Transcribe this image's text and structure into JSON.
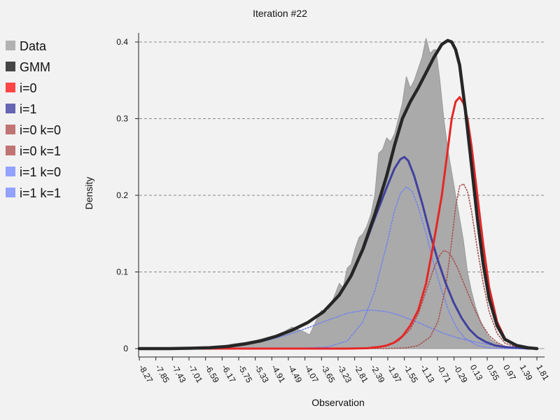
{
  "chart_data": {
    "type": "line",
    "title": "Iteration #22",
    "xlabel": "Observation",
    "ylabel": "Density",
    "x_range": [
      -8.27,
      2.0
    ],
    "ylim": [
      0,
      0.41
    ],
    "grid": "horizontal dashed",
    "legend_position": "left",
    "x_ticks": [
      "-8.27",
      "-7.85",
      "-7.43",
      "-7.01",
      "-6.59",
      "-6.17",
      "-5.75",
      "-5.33",
      "-4.91",
      "-4.49",
      "-4.07",
      "-3.65",
      "-3.23",
      "-2.81",
      "-2.39",
      "-1.97",
      "-1.55",
      "-1.13",
      "-0.71",
      "-0.29",
      "0.13",
      "0.55",
      "0.97",
      "1.39",
      "1.81"
    ],
    "y_ticks": [
      0,
      0.1,
      0.2,
      0.3,
      0.4
    ],
    "y_tick_labels": [
      "0",
      "0.1",
      "0.2",
      "0.3",
      "0.4"
    ],
    "legend": [
      {
        "name": "Data",
        "color": "#aaaaaa"
      },
      {
        "name": "GMM",
        "color": "#333333"
      },
      {
        "name": "i=0",
        "color": "#ff3333"
      },
      {
        "name": "i=1",
        "color": "#5555aa"
      },
      {
        "name": "i=0 k=0",
        "color": "#bb6666"
      },
      {
        "name": "i=0 k=1",
        "color": "#bb6666"
      },
      {
        "name": "i=1 k=0",
        "color": "#8899ff"
      },
      {
        "name": "i=1 k=1",
        "color": "#8899ff"
      }
    ],
    "data_histogram": {
      "x": [
        -8.27,
        -8.0,
        -7.5,
        -7.0,
        -6.5,
        -6.3,
        -6.1,
        -5.9,
        -5.6,
        -5.3,
        -5.0,
        -4.8,
        -4.6,
        -4.4,
        -4.3,
        -4.1,
        -3.95,
        -3.8,
        -3.65,
        -3.5,
        -3.35,
        -3.2,
        -3.1,
        -3.0,
        -2.9,
        -2.8,
        -2.7,
        -2.6,
        -2.5,
        -2.4,
        -2.3,
        -2.2,
        -2.1,
        -2.0,
        -1.9,
        -1.8,
        -1.7,
        -1.6,
        -1.5,
        -1.4,
        -1.3,
        -1.2,
        -1.1,
        -1.0,
        -0.9,
        -0.8,
        -0.75,
        -0.65,
        -0.55,
        -0.45,
        -0.35,
        -0.25,
        -0.15,
        -0.05,
        0.05,
        0.15,
        0.25,
        0.35,
        0.45,
        0.55,
        0.65,
        0.75,
        0.9,
        1.1,
        1.3,
        1.5,
        1.8,
        2.0
      ],
      "y": [
        0.0,
        0.0,
        0.0,
        0.0,
        0.002,
        0.003,
        0.004,
        0.006,
        0.008,
        0.011,
        0.015,
        0.018,
        0.022,
        0.028,
        0.026,
        0.022,
        0.018,
        0.035,
        0.05,
        0.048,
        0.065,
        0.085,
        0.08,
        0.105,
        0.11,
        0.13,
        0.145,
        0.15,
        0.16,
        0.175,
        0.2,
        0.255,
        0.26,
        0.275,
        0.27,
        0.28,
        0.3,
        0.32,
        0.355,
        0.34,
        0.35,
        0.365,
        0.38,
        0.405,
        0.385,
        0.39,
        0.39,
        0.35,
        0.3,
        0.26,
        0.23,
        0.2,
        0.17,
        0.14,
        0.1,
        0.075,
        0.055,
        0.04,
        0.028,
        0.018,
        0.012,
        0.008,
        0.004,
        0.002,
        0.001,
        0.0,
        0.0,
        0.0
      ]
    },
    "series": [
      {
        "name": "GMM",
        "style": "solid-thick",
        "color": "#262626",
        "x": [
          -8.27,
          -7.5,
          -7.0,
          -6.5,
          -6.0,
          -5.6,
          -5.2,
          -4.8,
          -4.4,
          -4.0,
          -3.6,
          -3.2,
          -2.9,
          -2.6,
          -2.3,
          -2.0,
          -1.8,
          -1.6,
          -1.4,
          -1.2,
          -1.0,
          -0.8,
          -0.6,
          -0.45,
          -0.35,
          -0.25,
          -0.15,
          0.0,
          0.15,
          0.3,
          0.45,
          0.6,
          0.8,
          1.0,
          1.3,
          1.6,
          1.81
        ],
        "y": [
          0.0,
          0.0,
          0.0005,
          0.0012,
          0.003,
          0.006,
          0.01,
          0.016,
          0.024,
          0.034,
          0.048,
          0.07,
          0.095,
          0.13,
          0.175,
          0.225,
          0.265,
          0.3,
          0.322,
          0.34,
          0.36,
          0.38,
          0.397,
          0.402,
          0.4,
          0.39,
          0.37,
          0.31,
          0.24,
          0.17,
          0.11,
          0.065,
          0.03,
          0.012,
          0.004,
          0.001,
          0.0
        ]
      },
      {
        "name": "i=0",
        "style": "solid",
        "color": "#e62626",
        "x": [
          -8.27,
          -3.0,
          -2.5,
          -2.2,
          -2.0,
          -1.8,
          -1.6,
          -1.4,
          -1.2,
          -1.0,
          -0.8,
          -0.6,
          -0.45,
          -0.35,
          -0.25,
          -0.15,
          -0.05,
          0.05,
          0.15,
          0.3,
          0.45,
          0.6,
          0.8,
          1.0,
          1.3,
          1.6,
          1.81
        ],
        "y": [
          0.0,
          0.0,
          0.0005,
          0.002,
          0.004,
          0.008,
          0.016,
          0.03,
          0.05,
          0.085,
          0.14,
          0.2,
          0.26,
          0.3,
          0.322,
          0.328,
          0.32,
          0.3,
          0.265,
          0.2,
          0.135,
          0.08,
          0.035,
          0.013,
          0.004,
          0.001,
          0.0
        ]
      },
      {
        "name": "i=1",
        "style": "solid",
        "color": "#4040a0",
        "x": [
          -8.27,
          -7.5,
          -7.0,
          -6.5,
          -6.0,
          -5.6,
          -5.2,
          -4.8,
          -4.4,
          -4.0,
          -3.6,
          -3.2,
          -2.9,
          -2.6,
          -2.3,
          -2.0,
          -1.8,
          -1.65,
          -1.55,
          -1.45,
          -1.3,
          -1.1,
          -0.9,
          -0.7,
          -0.5,
          -0.3,
          -0.1,
          0.1,
          0.3,
          0.5,
          0.75,
          1.0,
          1.3,
          1.6,
          1.81
        ],
        "y": [
          0.0,
          0.0,
          0.0005,
          0.0012,
          0.003,
          0.006,
          0.01,
          0.016,
          0.024,
          0.034,
          0.048,
          0.07,
          0.095,
          0.128,
          0.17,
          0.21,
          0.235,
          0.247,
          0.25,
          0.245,
          0.225,
          0.19,
          0.15,
          0.115,
          0.085,
          0.06,
          0.04,
          0.025,
          0.015,
          0.009,
          0.004,
          0.002,
          0.001,
          0.0,
          0.0
        ]
      },
      {
        "name": "i=0 k=0",
        "style": "dotted",
        "color": "#a85050",
        "x": [
          -8.27,
          -3.0,
          -2.5,
          -2.0,
          -1.7,
          -1.4,
          -1.2,
          -1.0,
          -0.8,
          -0.65,
          -0.55,
          -0.45,
          -0.35,
          -0.2,
          0.0,
          0.2,
          0.4,
          0.6,
          0.8,
          1.0,
          1.3,
          1.81
        ],
        "y": [
          0.0,
          0.0,
          0.001,
          0.004,
          0.01,
          0.025,
          0.045,
          0.075,
          0.105,
          0.122,
          0.128,
          0.126,
          0.12,
          0.105,
          0.08,
          0.055,
          0.033,
          0.017,
          0.008,
          0.003,
          0.001,
          0.0
        ]
      },
      {
        "name": "i=0 k=1",
        "style": "dotted",
        "color": "#a85050",
        "x": [
          -8.27,
          -2.0,
          -1.5,
          -1.2,
          -0.9,
          -0.7,
          -0.5,
          -0.35,
          -0.25,
          -0.15,
          -0.05,
          0.05,
          0.15,
          0.3,
          0.45,
          0.6,
          0.8,
          1.0,
          1.3,
          1.81
        ],
        "y": [
          0.0,
          0.0,
          0.001,
          0.004,
          0.015,
          0.035,
          0.08,
          0.14,
          0.185,
          0.212,
          0.215,
          0.205,
          0.18,
          0.13,
          0.085,
          0.048,
          0.02,
          0.007,
          0.002,
          0.0
        ]
      },
      {
        "name": "i=1 k=0",
        "style": "dotted",
        "color": "#7080f0",
        "x": [
          -8.27,
          -4.5,
          -3.5,
          -3.0,
          -2.6,
          -2.3,
          -2.0,
          -1.8,
          -1.65,
          -1.5,
          -1.35,
          -1.2,
          -1.0,
          -0.8,
          -0.6,
          -0.4,
          -0.2,
          0.0,
          0.3,
          0.6,
          1.0,
          1.81
        ],
        "y": [
          0.0,
          0.0,
          0.002,
          0.01,
          0.035,
          0.075,
          0.135,
          0.18,
          0.202,
          0.211,
          0.205,
          0.185,
          0.15,
          0.11,
          0.075,
          0.045,
          0.025,
          0.013,
          0.004,
          0.001,
          0.0,
          0.0
        ]
      },
      {
        "name": "i=1 k=1",
        "style": "dotted",
        "color": "#7080f0",
        "x": [
          -8.27,
          -7.5,
          -7.0,
          -6.5,
          -6.0,
          -5.5,
          -5.0,
          -4.5,
          -4.0,
          -3.5,
          -3.0,
          -2.6,
          -2.3,
          -2.0,
          -1.7,
          -1.4,
          -1.1,
          -0.8,
          -0.5,
          -0.2,
          0.2,
          0.6,
          1.0,
          1.4,
          1.81
        ],
        "y": [
          0.0,
          0.0,
          0.0005,
          0.0012,
          0.003,
          0.006,
          0.011,
          0.018,
          0.027,
          0.037,
          0.046,
          0.05,
          0.05,
          0.048,
          0.044,
          0.038,
          0.032,
          0.025,
          0.019,
          0.014,
          0.009,
          0.005,
          0.003,
          0.001,
          0.0
        ]
      }
    ]
  }
}
